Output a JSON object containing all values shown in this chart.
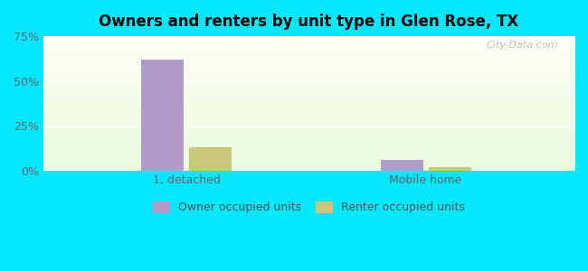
{
  "title": "Owners and renters by unit type in Glen Rose, TX",
  "categories": [
    "1, detached",
    "Mobile home"
  ],
  "owner_values": [
    62.0,
    6.0
  ],
  "renter_values": [
    13.0,
    2.0
  ],
  "owner_color": "#b09cc8",
  "renter_color": "#c8c87a",
  "ylim": [
    0,
    75
  ],
  "yticks": [
    0,
    25,
    50,
    75
  ],
  "yticklabels": [
    "0%",
    "25%",
    "50%",
    "75%"
  ],
  "background_outer": "#00e8ff",
  "legend_labels": [
    "Owner occupied units",
    "Renter occupied units"
  ],
  "watermark": "City-Data.com",
  "bar_width": 0.08,
  "group_centers": [
    0.27,
    0.72
  ]
}
